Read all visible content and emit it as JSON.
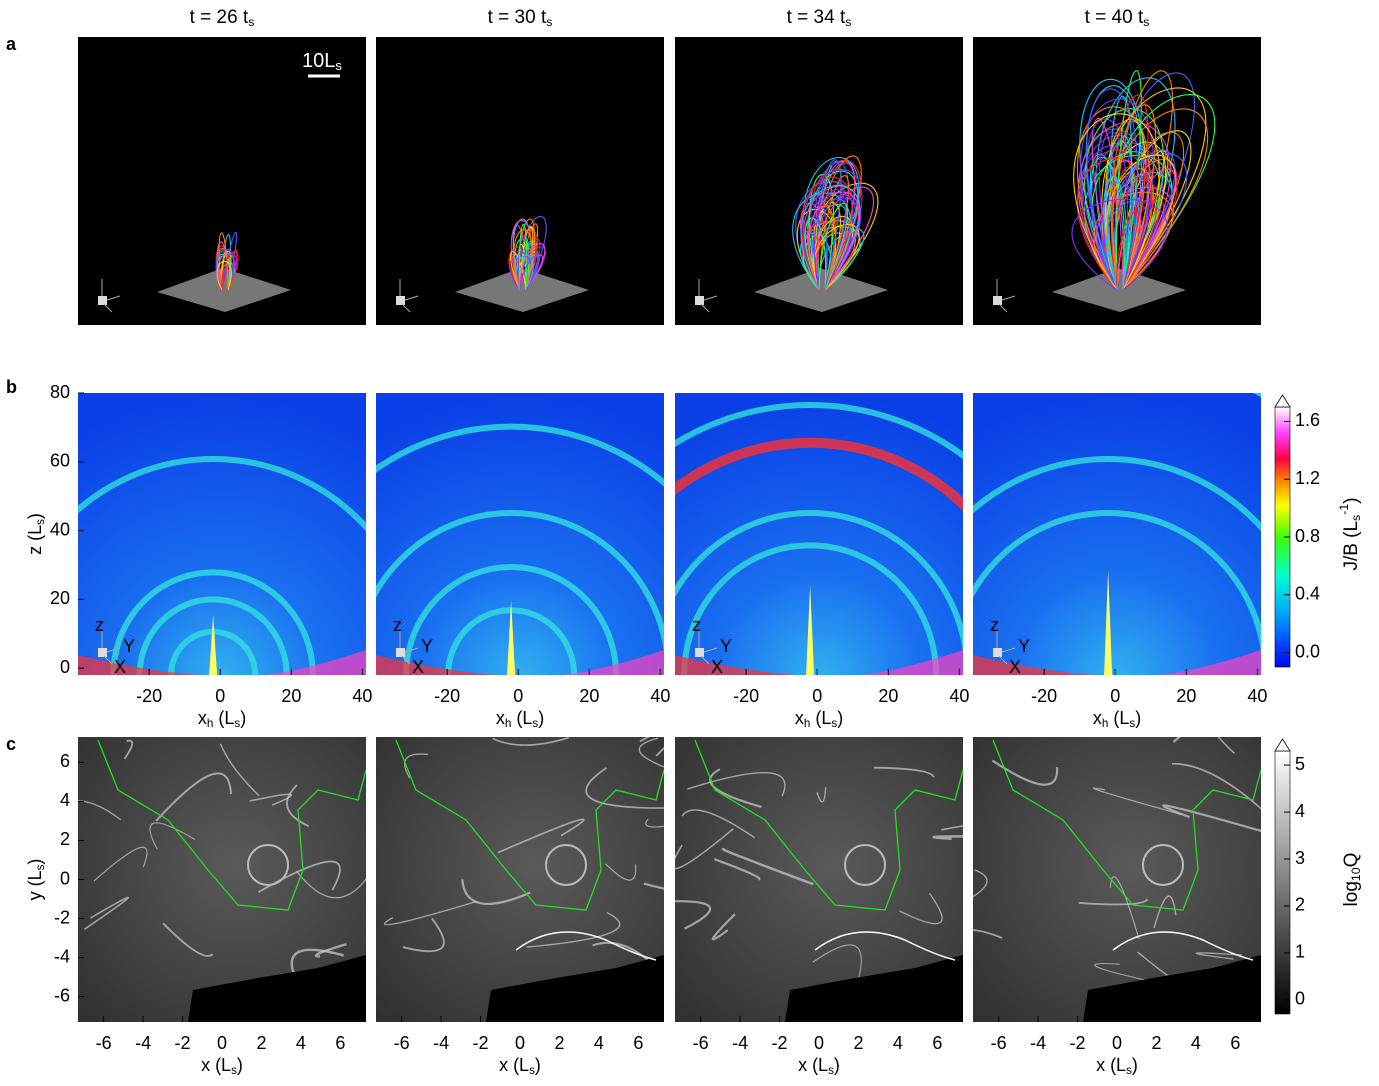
{
  "panel_labels": [
    "a",
    "b",
    "c"
  ],
  "columns": [
    [
      {
        "t": "t = 26 t"
      },
      {
        "sub": "s"
      }
    ],
    [
      {
        "t": "t = 30 t"
      },
      {
        "sub": "s"
      }
    ],
    [
      {
        "t": "t = 34 t"
      },
      {
        "sub": "s"
      }
    ],
    [
      {
        "t": "t = 40 t"
      },
      {
        "sub": "s"
      }
    ]
  ],
  "scale_bar": [
    {
      "t": "10L"
    },
    {
      "sub": "s"
    }
  ],
  "triad": {
    "z": "z",
    "y": "Y",
    "x": "X"
  },
  "row_b": {
    "xlim": [
      -40,
      41
    ],
    "xticks": [
      -20,
      0,
      20,
      40
    ],
    "ylim": [
      -2,
      80
    ],
    "yticks": [
      0,
      20,
      40,
      60,
      80
    ],
    "xlabel": [
      {
        "t": "x"
      },
      {
        "sub": "h"
      },
      {
        "t": " (L"
      },
      {
        "sub": "s"
      },
      {
        "t": ")"
      }
    ],
    "ylabel": [
      {
        "t": "z (L"
      },
      {
        "sub": "s"
      },
      {
        "t": ")"
      }
    ],
    "colorbar": {
      "lim": [
        -0.1,
        1.7
      ],
      "ticks": [
        {
          "value": 0,
          "label": "0.0"
        },
        {
          "value": 0.4,
          "label": "0.4"
        },
        {
          "value": 0.8,
          "label": "0.8"
        },
        {
          "value": 1.2,
          "label": "1.2"
        },
        {
          "value": 1.6,
          "label": "1.6"
        }
      ],
      "label": [
        {
          "t": "J/B (L"
        },
        {
          "sub": "s"
        },
        {
          "sup": "-1"
        },
        {
          "t": ")"
        }
      ]
    }
  },
  "row_c": {
    "xlim": [
      -7.3,
      7.3
    ],
    "xticks": [
      -6,
      -4,
      -2,
      0,
      2,
      4,
      6
    ],
    "ylim": [
      -7.3,
      7.3
    ],
    "yticks": [
      -6,
      -4,
      -2,
      0,
      2,
      4,
      6
    ],
    "xlabel": [
      {
        "t": "x (L"
      },
      {
        "sub": "s"
      },
      {
        "t": ")"
      }
    ],
    "ylabel": [
      {
        "t": "y (L"
      },
      {
        "sub": "s"
      },
      {
        "t": ")"
      }
    ],
    "colorbar": {
      "lim": [
        -0.3,
        5.3
      ],
      "ticks": [
        0,
        1,
        2,
        3,
        4,
        5
      ],
      "label": [
        {
          "t": "log"
        },
        {
          "sub": "10"
        },
        {
          "t": "Q"
        }
      ]
    }
  }
}
